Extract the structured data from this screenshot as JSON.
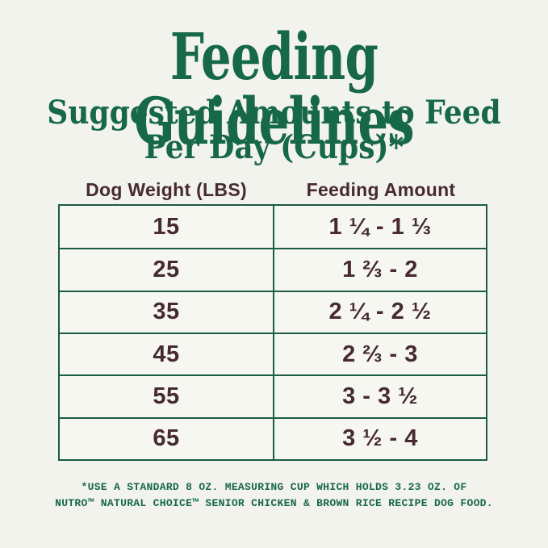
{
  "colors": {
    "background": "#f2f3ec",
    "brand_green": "#17684a",
    "text_maroon": "#462a30",
    "table_border": "#1a5c47"
  },
  "header": {
    "title": "Feeding Guidelines",
    "subtitle_line1": "Suggested Amounts to Feed",
    "subtitle_line2": "Per Day (Cups)*"
  },
  "table": {
    "columns": [
      "Dog Weight (LBS)",
      "Feeding Amount"
    ],
    "rows": [
      {
        "weight": "15",
        "amount": "1 ¼ - 1 ⅓"
      },
      {
        "weight": "25",
        "amount": "1 ⅔ - 2"
      },
      {
        "weight": "35",
        "amount": "2 ¼ - 2 ½"
      },
      {
        "weight": "45",
        "amount": "2 ⅔ - 3"
      },
      {
        "weight": "55",
        "amount": "3 - 3 ½"
      },
      {
        "weight": "65",
        "amount": "3 ½ - 4"
      }
    ]
  },
  "footnote": {
    "line1": "*USE A STANDARD 8 OZ. MEASURING CUP WHICH HOLDS 3.23 OZ. OF",
    "line2": "NUTRO™ NATURAL CHOICE™ SENIOR CHICKEN & BROWN RICE RECIPE DOG FOOD."
  }
}
